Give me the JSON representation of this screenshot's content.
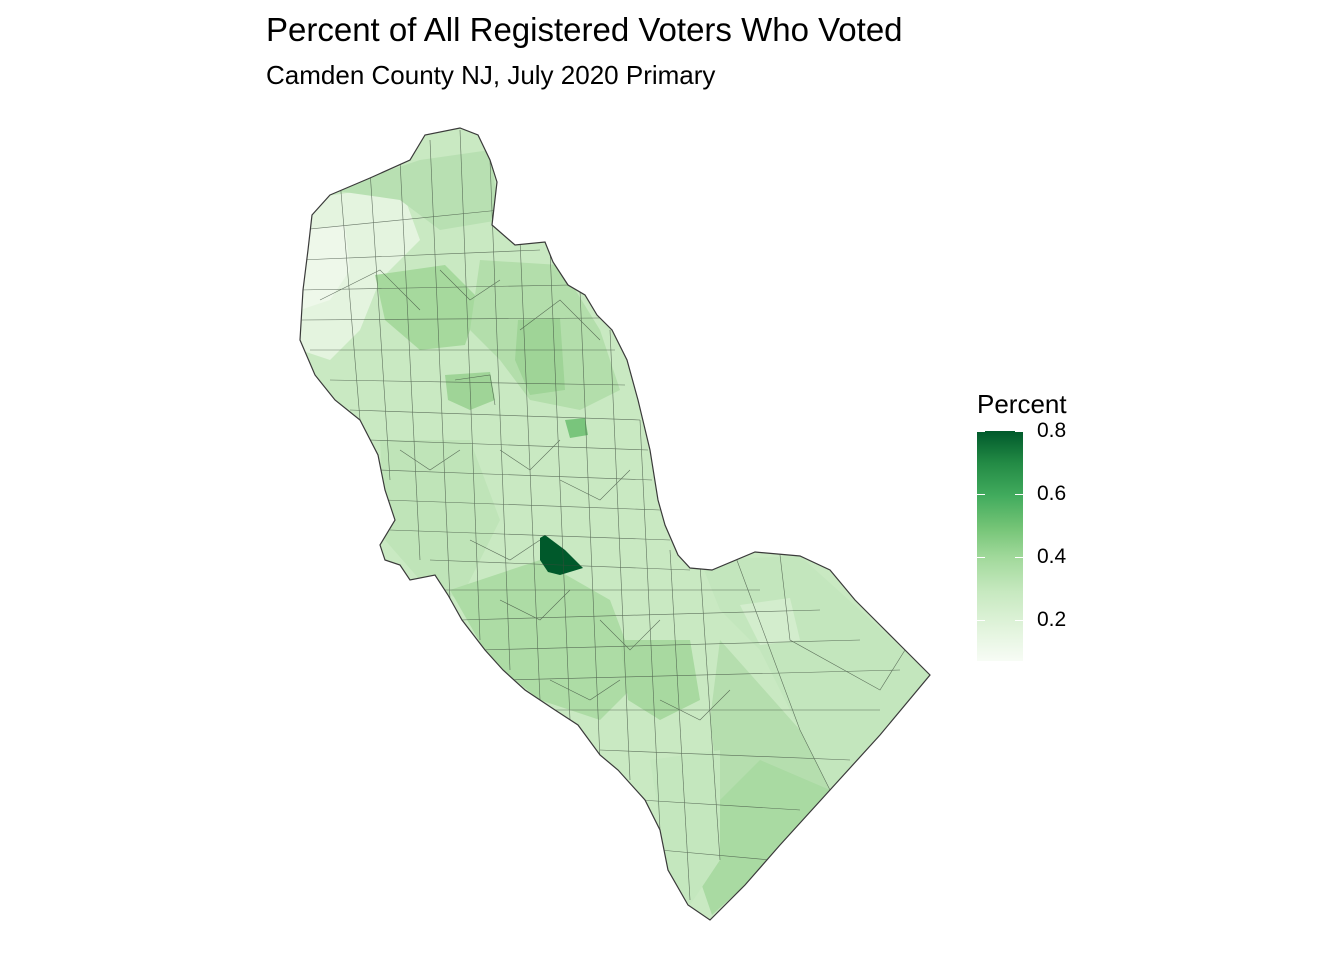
{
  "chart_data": {
    "type": "choropleth",
    "title": "Percent of All Registered Voters Who Voted",
    "subtitle": "Camden County NJ, July 2020 Primary",
    "legend": {
      "title": "Percent",
      "placement": "right",
      "labels": [
        "0.8",
        "0.6",
        "0.4",
        "0.2"
      ],
      "ticks": [
        0.8,
        0.6,
        0.4,
        0.2
      ],
      "range": [
        0.07,
        0.8
      ],
      "color_low": "#f7fcf5",
      "color_high": "#00592b"
    },
    "grid": false,
    "axes": false
  }
}
